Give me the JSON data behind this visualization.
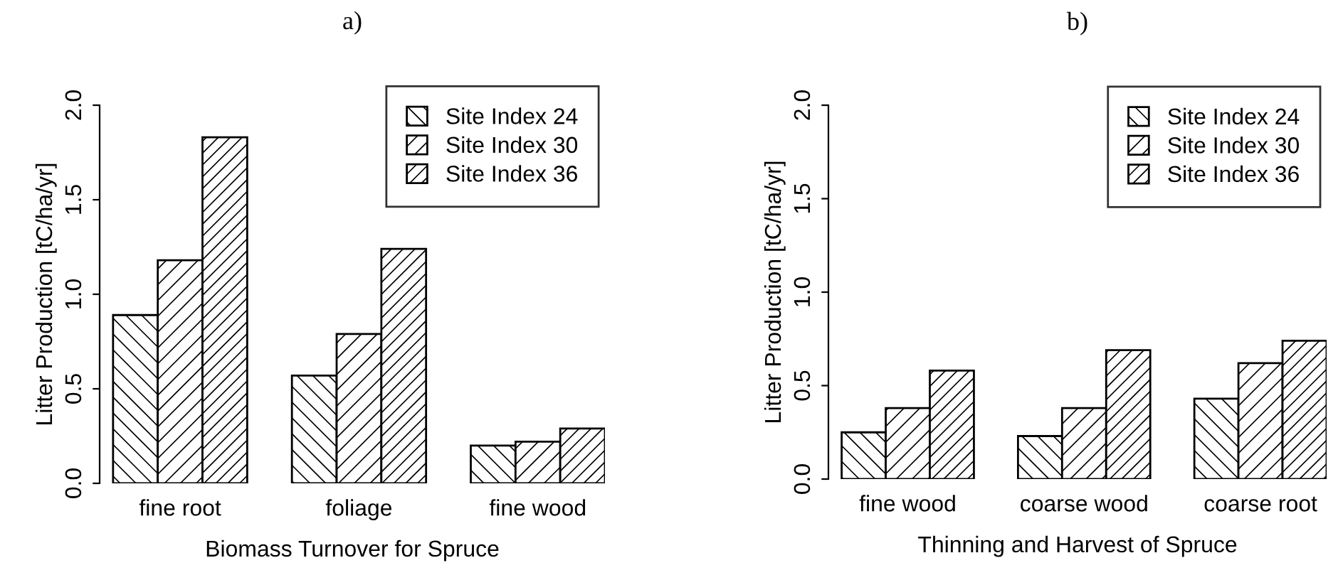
{
  "chart_data": [
    {
      "type": "bar",
      "title": "a)",
      "xlabel": "Biomass Turnover for Spruce",
      "ylabel": "Litter Production [tC/ha/yr]",
      "categories": [
        "fine root",
        "foliage",
        "fine wood"
      ],
      "series": [
        {
          "name": "Site Index 24",
          "color": "#000000",
          "values": [
            0.89,
            0.57,
            0.2
          ]
        },
        {
          "name": "Site Index 30",
          "color": "#000000",
          "values": [
            1.18,
            0.79,
            0.22
          ]
        },
        {
          "name": "Site Index 36",
          "color": "#000000",
          "values": [
            1.83,
            1.24,
            0.29
          ]
        }
      ],
      "ylim": [
        0,
        2
      ],
      "yticks": [
        {
          "value": 0,
          "label": "0.0"
        },
        {
          "value": 0.5,
          "label": "0.5"
        },
        {
          "value": 1,
          "label": "1.0"
        },
        {
          "value": 1.5,
          "label": "1.5"
        },
        {
          "value": 2,
          "label": "2.0"
        }
      ],
      "legend": "top right",
      "grid": false
    },
    {
      "type": "bar",
      "title": "b)",
      "xlabel": "Thinning and Harvest of Spruce",
      "ylabel": "Litter Production [tC/ha/yr]",
      "categories": [
        "fine wood",
        "coarse wood",
        "coarse root"
      ],
      "series": [
        {
          "name": "Site Index 24",
          "color": "#000000",
          "values": [
            0.25,
            0.23,
            0.43
          ]
        },
        {
          "name": "Site Index 30",
          "color": "#000000",
          "values": [
            0.38,
            0.38,
            0.62
          ]
        },
        {
          "name": "Site Index 36",
          "color": "#000000",
          "values": [
            0.58,
            0.69,
            0.74
          ]
        }
      ],
      "ylim": [
        0,
        2
      ],
      "yticks": [
        {
          "value": 0,
          "label": "0.0"
        },
        {
          "value": 0.5,
          "label": "0.5"
        },
        {
          "value": 1,
          "label": "1.0"
        },
        {
          "value": 1.5,
          "label": "1.5"
        },
        {
          "value": 2,
          "label": "2.0"
        }
      ],
      "legend": "top right",
      "grid": false
    }
  ]
}
